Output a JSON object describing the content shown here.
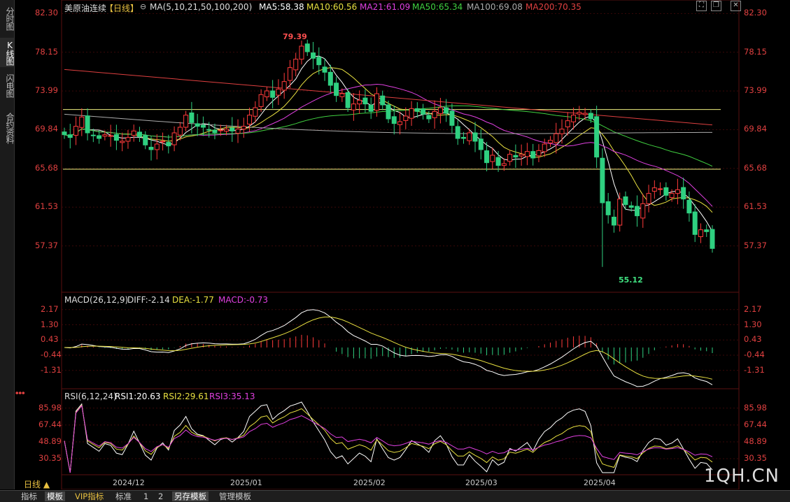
{
  "left_tabs": [
    {
      "label": "分时图"
    },
    {
      "label": "K线图"
    },
    {
      "label": "闪电图"
    },
    {
      "label": "合约资料"
    }
  ],
  "main": {
    "name": "美原油连续",
    "period": "【日线】",
    "ma_params": "MA(5,10,21,50,100,200)",
    "ma_values": [
      {
        "label": "MA5:58.38",
        "color": "#ffffff"
      },
      {
        "label": "MA10:60.56",
        "color": "#e8e040"
      },
      {
        "label": "MA21:61.09",
        "color": "#e040e0"
      },
      {
        "label": "MA50:65.34",
        "color": "#40d040"
      },
      {
        "label": "MA100:69.08",
        "color": "#aaaaaa"
      },
      {
        "label": "MA200:70.35",
        "color": "#e04040"
      }
    ],
    "high_label": "79.39",
    "low_label": "55.12",
    "y_ticks": [
      "82.30",
      "78.15",
      "73.99",
      "69.84",
      "65.68",
      "61.53",
      "57.37"
    ]
  },
  "macd": {
    "title": "MACD(26,12,9)",
    "diff": "DIFF:-2.14",
    "dea": "DEA:-1.77",
    "macd": "MACD:-0.73",
    "y_ticks": [
      "2.17",
      "1.30",
      "0.43",
      "-0.44",
      "-1.31"
    ]
  },
  "rsi": {
    "title": "RSI(6,12,24)",
    "rsi1": "RSI1:20.63",
    "rsi2": "RSI2:29.61",
    "rsi3": "RSI3:35.13",
    "y_ticks": [
      "85.98",
      "67.44",
      "48.89",
      "30.35"
    ]
  },
  "x_labels": [
    "2024/12",
    "2025/01",
    "2025/02",
    "2025/03",
    "2025/04"
  ],
  "period_button": "日线 ▲",
  "bottom_tabs": [
    {
      "label": "指标"
    },
    {
      "label": "模板"
    },
    {
      "label": "VIP指标"
    },
    {
      "label": "标准"
    },
    {
      "label": "1"
    },
    {
      "label": "2"
    },
    {
      "label": "另存模板"
    },
    {
      "label": "管理模板"
    }
  ],
  "watermark": "1QH.CN",
  "chart_data": {
    "type": "candlestick",
    "title": "美原油连续【日线】",
    "price_range": [
      53.0,
      83.0
    ],
    "horizontal_lines": [
      72.0,
      65.6
    ],
    "high": 79.39,
    "low": 55.12,
    "closes": [
      69.3,
      69.0,
      70.2,
      71.2,
      69.5,
      69.2,
      68.9,
      69.3,
      69.2,
      68.7,
      68.6,
      69.0,
      69.7,
      69.1,
      68.2,
      67.7,
      68.3,
      68.6,
      68.1,
      69.5,
      70.1,
      71.4,
      70.6,
      70.2,
      70.1,
      69.8,
      69.5,
      69.8,
      69.9,
      69.7,
      69.9,
      70.2,
      71.4,
      72.2,
      73.6,
      74.0,
      73.3,
      74.2,
      75.0,
      76.5,
      77.4,
      78.8,
      78.2,
      77.5,
      76.8,
      76.0,
      74.6,
      73.5,
      73.7,
      72.2,
      72.6,
      73.0,
      72.6,
      71.8,
      73.7,
      72.5,
      71.0,
      70.5,
      70.7,
      71.3,
      72.1,
      71.8,
      71.5,
      71.0,
      71.8,
      72.2,
      71.6,
      70.3,
      68.9,
      68.9,
      69.5,
      68.6,
      67.7,
      66.3,
      67.1,
      66.0,
      66.2,
      67.2,
      66.9,
      67.2,
      67.5,
      66.8,
      67.6,
      68.3,
      68.7,
      69.4,
      69.9,
      70.8,
      71.4,
      71.7,
      71.6,
      71.0,
      66.9,
      62.0,
      60.7,
      59.6,
      62.4,
      61.8,
      61.5,
      60.6,
      61.9,
      63.0,
      63.6,
      63.5,
      62.8,
      63.0,
      63.4,
      62.4,
      60.9,
      58.6,
      59.1,
      58.9,
      57.1
    ],
    "macd": {
      "diff_last": -2.14,
      "dea_last": -1.77,
      "hist_last": -0.73,
      "range": [
        -2.2,
        2.6
      ]
    },
    "rsi": {
      "rsi1_last": 20.63,
      "rsi2_last": 29.61,
      "rsi3_last": 35.13,
      "range": [
        15,
        95
      ]
    }
  }
}
